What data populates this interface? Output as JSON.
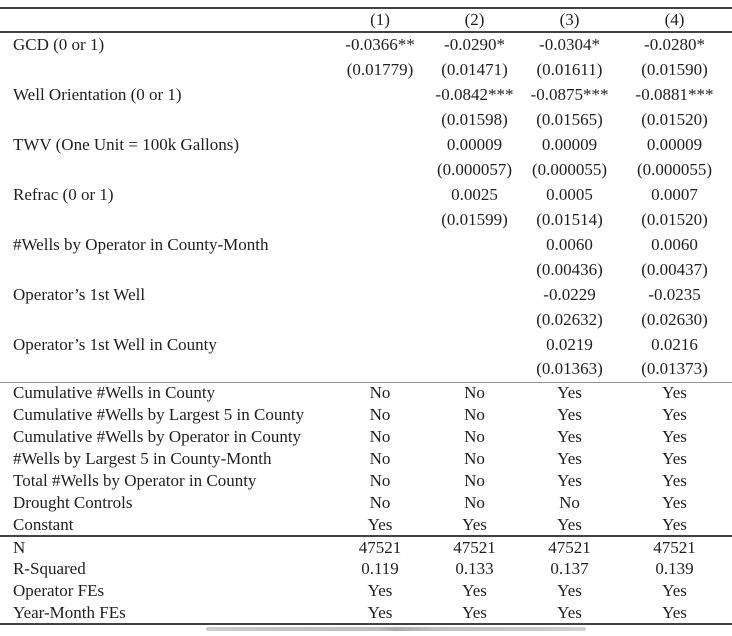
{
  "table": {
    "columns": [
      "(1)",
      "(2)",
      "(3)",
      "(4)"
    ],
    "coefficient_rows": [
      {
        "label": "GCD (0 or 1)",
        "estimates": [
          "-0.0366**",
          "-0.0290*",
          "-0.0304*",
          "-0.0280*"
        ],
        "std_errors": [
          "(0.01779)",
          "(0.01471)",
          "(0.01611)",
          "(0.01590)"
        ]
      },
      {
        "label": "Well Orientation (0 or 1)",
        "estimates": [
          "",
          "-0.0842***",
          "-0.0875***",
          "-0.0881***"
        ],
        "std_errors": [
          "",
          "(0.01598)",
          "(0.01565)",
          "(0.01520)"
        ]
      },
      {
        "label": "TWV (One Unit = 100k Gallons)",
        "estimates": [
          "",
          "0.00009",
          "0.00009",
          "0.00009"
        ],
        "std_errors": [
          "",
          "(0.000057)",
          "(0.000055)",
          "(0.000055)"
        ]
      },
      {
        "label": "Refrac (0 or 1)",
        "estimates": [
          "",
          "0.0025",
          "0.0005",
          "0.0007"
        ],
        "std_errors": [
          "",
          "(0.01599)",
          "(0.01514)",
          "(0.01520)"
        ]
      },
      {
        "label": "#Wells by Operator in County-Month",
        "estimates": [
          "",
          "",
          "0.0060",
          "0.0060"
        ],
        "std_errors": [
          "",
          "",
          "(0.00436)",
          "(0.00437)"
        ]
      },
      {
        "label": "Operator’s 1st Well",
        "estimates": [
          "",
          "",
          "-0.0229",
          "-0.0235"
        ],
        "std_errors": [
          "",
          "",
          "(0.02632)",
          "(0.02630)"
        ]
      },
      {
        "label": "Operator’s 1st Well in County",
        "estimates": [
          "",
          "",
          "0.0219",
          "0.0216"
        ],
        "std_errors": [
          "",
          "",
          "(0.01363)",
          "(0.01373)"
        ]
      }
    ],
    "control_rows": [
      {
        "label": "Cumulative #Wells in County",
        "values": [
          "No",
          "No",
          "Yes",
          "Yes"
        ]
      },
      {
        "label": "Cumulative #Wells by Largest 5 in County",
        "values": [
          "No",
          "No",
          "Yes",
          "Yes"
        ]
      },
      {
        "label": "Cumulative #Wells by Operator in County",
        "values": [
          "No",
          "No",
          "Yes",
          "Yes"
        ]
      },
      {
        "label": "#Wells by Largest 5 in County-Month",
        "values": [
          "No",
          "No",
          "Yes",
          "Yes"
        ]
      },
      {
        "label": "Total #Wells by Operator in County",
        "values": [
          "No",
          "No",
          "Yes",
          "Yes"
        ]
      },
      {
        "label": "Drought Controls",
        "values": [
          "No",
          "No",
          "No",
          "Yes"
        ]
      },
      {
        "label": "Constant",
        "values": [
          "Yes",
          "Yes",
          "Yes",
          "Yes"
        ]
      }
    ],
    "summary_rows": [
      {
        "label": "N",
        "values": [
          "47521",
          "47521",
          "47521",
          "47521"
        ]
      },
      {
        "label": "R-Squared",
        "values": [
          "0.119",
          "0.133",
          "0.137",
          "0.139"
        ]
      },
      {
        "label": "Operator FEs",
        "values": [
          "Yes",
          "Yes",
          "Yes",
          "Yes"
        ]
      },
      {
        "label": "Year-Month FEs",
        "values": [
          "Yes",
          "Yes",
          "Yes",
          "Yes"
        ]
      }
    ],
    "rule_color": "#434343",
    "text_color": "#1f1f1f"
  }
}
